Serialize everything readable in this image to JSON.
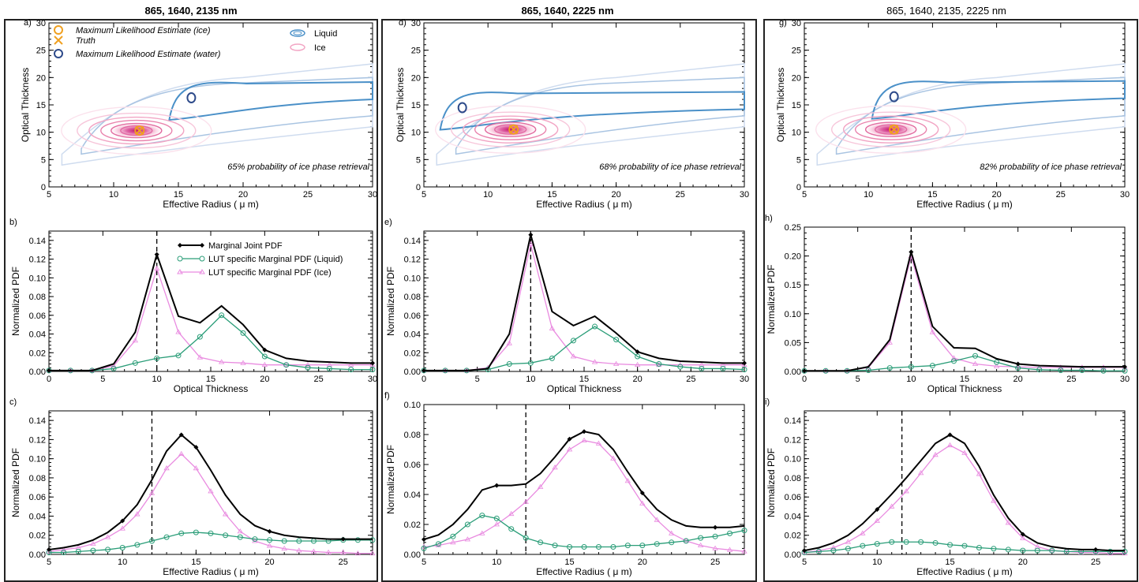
{
  "columns": [
    {
      "title": "865, 1640, 2135 nm"
    },
    {
      "title": "865, 1640, 2225 nm"
    },
    {
      "title": "865, 1640, 2135, 2225 nm"
    }
  ],
  "colors": {
    "joint": "#000000",
    "liquid": "#2a9d78",
    "ice": "#e98be0",
    "liquid_contour": "#4a90c8",
    "ice_contour": "#d6336f",
    "mle_ice": "#f0a020",
    "mle_water": "#2d4a8a"
  },
  "legend_top": {
    "mle_ice": "Maximum Likelihood Estimate (ice)",
    "truth": "Truth",
    "mle_water": "Maximum Likelihood Estimate (water)",
    "liquid": "Liquid",
    "ice": "Ice"
  },
  "legend_mid": {
    "joint": "Marginal Joint PDF",
    "liquid": "LUT specific Marginal PDF (Liquid)",
    "ice": "LUT specific Marginal PDF (Ice)"
  },
  "chart_data": [
    {
      "panel": "a)",
      "type": "heatmap",
      "xlabel": "Effective Radius ( μ m)",
      "ylabel": "Optical Thickness",
      "xlim": [
        5,
        30
      ],
      "ylim": [
        0,
        30
      ],
      "annotation": "65% probability of ice phase retrieval",
      "mle_ice": [
        12,
        10.3
      ],
      "truth": [
        12,
        10.3
      ],
      "mle_water": [
        16,
        16.3
      ]
    },
    {
      "panel": "d)",
      "type": "heatmap",
      "xlabel": "Effective Radius ( μ m)",
      "ylabel": "Optical Thickness",
      "xlim": [
        5,
        30
      ],
      "ylim": [
        0,
        30
      ],
      "annotation": "68% probability of ice phase retrieval",
      "mle_ice": [
        12,
        10.5
      ],
      "truth": [
        12,
        10.5
      ],
      "mle_water": [
        8,
        14.5
      ]
    },
    {
      "panel": "g)",
      "type": "heatmap",
      "xlabel": "Effective Radius ( μ m)",
      "ylabel": "Optical Thickness",
      "xlim": [
        5,
        30
      ],
      "ylim": [
        0,
        30
      ],
      "annotation": "82% probability of ice phase retrieval",
      "mle_ice": [
        12,
        10.5
      ],
      "truth": [
        12,
        10.5
      ],
      "mle_water": [
        12,
        16.5
      ]
    },
    {
      "panel": "b)",
      "type": "line",
      "xlabel": "Optical Thickness",
      "ylabel": "Normalized PDF",
      "xlim": [
        0,
        30
      ],
      "ylim": [
        0,
        0.15
      ],
      "yticks": [
        0,
        0.02,
        0.04,
        0.06,
        0.08,
        0.1,
        0.12,
        0.14
      ],
      "xticks": [
        0,
        5,
        10,
        15,
        20,
        25,
        30
      ],
      "truth_x": 10,
      "x": [
        0,
        2,
        4,
        6,
        8,
        10,
        12,
        14,
        16,
        18,
        20,
        22,
        24,
        26,
        28,
        30
      ],
      "series": [
        {
          "name": "Marginal Joint PDF",
          "values": [
            0.001,
            0.001,
            0.001,
            0.008,
            0.042,
            0.125,
            0.059,
            0.052,
            0.07,
            0.05,
            0.023,
            0.014,
            0.011,
            0.01,
            0.009,
            0.009
          ]
        },
        {
          "name": "LUT specific Marginal PDF (Liquid)",
          "values": [
            0.001,
            0.001,
            0.001,
            0.003,
            0.009,
            0.014,
            0.017,
            0.037,
            0.06,
            0.041,
            0.016,
            0.007,
            0.004,
            0.003,
            0.002,
            0.002
          ]
        },
        {
          "name": "LUT specific Marginal PDF (Ice)",
          "values": [
            0.001,
            0.001,
            0.001,
            0.006,
            0.033,
            0.11,
            0.042,
            0.015,
            0.01,
            0.009,
            0.007,
            0.007,
            0.007,
            0.007,
            0.007,
            0.007
          ]
        }
      ]
    },
    {
      "panel": "e)",
      "type": "line",
      "xlabel": "Optical Thickness",
      "ylabel": "Normalized PDF",
      "xlim": [
        0,
        30
      ],
      "ylim": [
        0,
        0.15
      ],
      "yticks": [
        0,
        0.02,
        0.04,
        0.06,
        0.08,
        0.1,
        0.12,
        0.14
      ],
      "xticks": [
        0,
        5,
        10,
        15,
        20,
        25,
        30
      ],
      "truth_x": 10,
      "x": [
        0,
        2,
        4,
        6,
        8,
        10,
        12,
        14,
        16,
        18,
        20,
        22,
        24,
        26,
        28,
        30
      ],
      "series": [
        {
          "name": "Marginal Joint PDF",
          "values": [
            0.001,
            0.001,
            0.001,
            0.003,
            0.04,
            0.146,
            0.064,
            0.049,
            0.059,
            0.041,
            0.021,
            0.014,
            0.011,
            0.01,
            0.009,
            0.009
          ]
        },
        {
          "name": "LUT specific Marginal PDF (Liquid)",
          "values": [
            0.001,
            0.001,
            0.001,
            0.002,
            0.008,
            0.009,
            0.014,
            0.033,
            0.048,
            0.034,
            0.016,
            0.008,
            0.005,
            0.003,
            0.003,
            0.002
          ]
        },
        {
          "name": "LUT specific Marginal PDF (Ice)",
          "values": [
            0.001,
            0.001,
            0.001,
            0.004,
            0.03,
            0.136,
            0.046,
            0.016,
            0.01,
            0.008,
            0.007,
            0.007,
            0.007,
            0.007,
            0.007,
            0.007
          ]
        }
      ]
    },
    {
      "panel": "h)",
      "type": "line",
      "xlabel": "Optical Thickness",
      "ylabel": "Normalized PDF",
      "xlim": [
        0,
        30
      ],
      "ylim": [
        0,
        0.25
      ],
      "yticks": [
        0,
        0.05,
        0.1,
        0.15,
        0.2,
        0.25
      ],
      "xticks": [
        0,
        5,
        10,
        15,
        20,
        25,
        30
      ],
      "truth_x": 10,
      "x": [
        0,
        2,
        4,
        6,
        8,
        10,
        12,
        14,
        16,
        18,
        20,
        22,
        24,
        26,
        28,
        30
      ],
      "series": [
        {
          "name": "Marginal Joint PDF",
          "values": [
            0.001,
            0.001,
            0.001,
            0.008,
            0.055,
            0.207,
            0.078,
            0.041,
            0.04,
            0.022,
            0.013,
            0.01,
            0.009,
            0.008,
            0.008,
            0.008
          ]
        },
        {
          "name": "LUT specific Marginal PDF (Liquid)",
          "values": [
            0.001,
            0.001,
            0.001,
            0.002,
            0.006,
            0.008,
            0.01,
            0.018,
            0.027,
            0.016,
            0.006,
            0.003,
            0.002,
            0.002,
            0.001,
            0.001
          ]
        },
        {
          "name": "LUT specific Marginal PDF (Ice)",
          "values": [
            0.001,
            0.001,
            0.001,
            0.007,
            0.05,
            0.2,
            0.068,
            0.023,
            0.013,
            0.009,
            0.008,
            0.007,
            0.007,
            0.007,
            0.007,
            0.007
          ]
        }
      ]
    },
    {
      "panel": "c)",
      "type": "line",
      "xlabel": "Effective Radius ( μ m)",
      "ylabel": "Normalized PDF",
      "xlim": [
        5,
        27
      ],
      "ylim": [
        0,
        0.15
      ],
      "yticks": [
        0,
        0.02,
        0.04,
        0.06,
        0.08,
        0.1,
        0.12,
        0.14
      ],
      "xticks": [
        5,
        10,
        15,
        20,
        25
      ],
      "truth_x": 12,
      "x": [
        5,
        6,
        7,
        8,
        9,
        10,
        11,
        12,
        13,
        14,
        15,
        16,
        17,
        18,
        19,
        20,
        21,
        22,
        23,
        24,
        25,
        26,
        27
      ],
      "series": [
        {
          "name": "Marginal Joint PDF",
          "values": [
            0.005,
            0.007,
            0.01,
            0.015,
            0.023,
            0.035,
            0.052,
            0.078,
            0.108,
            0.125,
            0.112,
            0.088,
            0.062,
            0.042,
            0.03,
            0.024,
            0.02,
            0.018,
            0.017,
            0.016,
            0.016,
            0.016,
            0.016
          ]
        },
        {
          "name": "LUT specific Marginal PDF (Liquid)",
          "values": [
            0.002,
            0.002,
            0.003,
            0.004,
            0.005,
            0.007,
            0.01,
            0.014,
            0.018,
            0.022,
            0.023,
            0.022,
            0.02,
            0.018,
            0.016,
            0.015,
            0.014,
            0.014,
            0.014,
            0.014,
            0.015,
            0.015,
            0.015
          ]
        },
        {
          "name": "LUT specific Marginal PDF (Ice)",
          "values": [
            0.003,
            0.005,
            0.007,
            0.011,
            0.018,
            0.027,
            0.042,
            0.064,
            0.09,
            0.105,
            0.09,
            0.066,
            0.042,
            0.024,
            0.014,
            0.009,
            0.006,
            0.004,
            0.003,
            0.002,
            0.002,
            0.001,
            0.001
          ]
        }
      ]
    },
    {
      "panel": "f)",
      "type": "line",
      "xlabel": "Effective Radius ( μ m)",
      "ylabel": "Normalized PDF",
      "xlim": [
        5,
        27
      ],
      "ylim": [
        0,
        0.1
      ],
      "yticks": [
        0,
        0.02,
        0.04,
        0.06,
        0.08,
        0.1
      ],
      "xticks": [
        5,
        10,
        15,
        20,
        25
      ],
      "truth_x": 12,
      "x": [
        5,
        6,
        7,
        8,
        9,
        10,
        11,
        12,
        13,
        14,
        15,
        16,
        17,
        18,
        19,
        20,
        21,
        22,
        23,
        24,
        25,
        26,
        27
      ],
      "series": [
        {
          "name": "Marginal Joint PDF",
          "values": [
            0.01,
            0.013,
            0.02,
            0.03,
            0.043,
            0.046,
            0.046,
            0.047,
            0.054,
            0.065,
            0.077,
            0.082,
            0.08,
            0.07,
            0.055,
            0.041,
            0.03,
            0.023,
            0.019,
            0.018,
            0.018,
            0.018,
            0.019
          ]
        },
        {
          "name": "LUT specific Marginal PDF (Liquid)",
          "values": [
            0.004,
            0.007,
            0.012,
            0.02,
            0.026,
            0.024,
            0.017,
            0.011,
            0.008,
            0.006,
            0.005,
            0.005,
            0.005,
            0.005,
            0.006,
            0.006,
            0.007,
            0.008,
            0.009,
            0.011,
            0.012,
            0.014,
            0.016
          ]
        },
        {
          "name": "LUT specific Marginal PDF (Ice)",
          "values": [
            0.005,
            0.006,
            0.008,
            0.01,
            0.014,
            0.02,
            0.027,
            0.035,
            0.045,
            0.058,
            0.07,
            0.076,
            0.074,
            0.064,
            0.049,
            0.034,
            0.023,
            0.014,
            0.009,
            0.006,
            0.004,
            0.003,
            0.002
          ]
        }
      ]
    },
    {
      "panel": "i)",
      "type": "line",
      "xlabel": "Effective Radius ( μ m)",
      "ylabel": "Normalized PDF",
      "xlim": [
        5,
        27
      ],
      "ylim": [
        0,
        0.15
      ],
      "yticks": [
        0,
        0.02,
        0.04,
        0.06,
        0.08,
        0.1,
        0.12,
        0.14
      ],
      "xticks": [
        5,
        10,
        15,
        20,
        25
      ],
      "truth_x": 11.7,
      "x": [
        5,
        6,
        7,
        8,
        9,
        10,
        11,
        12,
        13,
        14,
        15,
        16,
        17,
        18,
        19,
        20,
        21,
        22,
        23,
        24,
        25,
        26,
        27
      ],
      "series": [
        {
          "name": "Marginal Joint PDF",
          "values": [
            0.004,
            0.007,
            0.012,
            0.02,
            0.032,
            0.047,
            0.063,
            0.08,
            0.098,
            0.116,
            0.125,
            0.116,
            0.092,
            0.062,
            0.038,
            0.021,
            0.012,
            0.008,
            0.006,
            0.005,
            0.005,
            0.004,
            0.004
          ]
        },
        {
          "name": "LUT specific Marginal PDF (Liquid)",
          "values": [
            0.002,
            0.003,
            0.004,
            0.006,
            0.009,
            0.011,
            0.013,
            0.013,
            0.013,
            0.012,
            0.01,
            0.009,
            0.007,
            0.006,
            0.005,
            0.004,
            0.004,
            0.004,
            0.003,
            0.003,
            0.003,
            0.003,
            0.003
          ]
        },
        {
          "name": "LUT specific Marginal PDF (Ice)",
          "values": [
            0.002,
            0.004,
            0.007,
            0.013,
            0.022,
            0.035,
            0.05,
            0.066,
            0.085,
            0.104,
            0.114,
            0.106,
            0.084,
            0.056,
            0.033,
            0.017,
            0.008,
            0.004,
            0.003,
            0.002,
            0.002,
            0.001,
            0.001
          ]
        }
      ]
    }
  ]
}
